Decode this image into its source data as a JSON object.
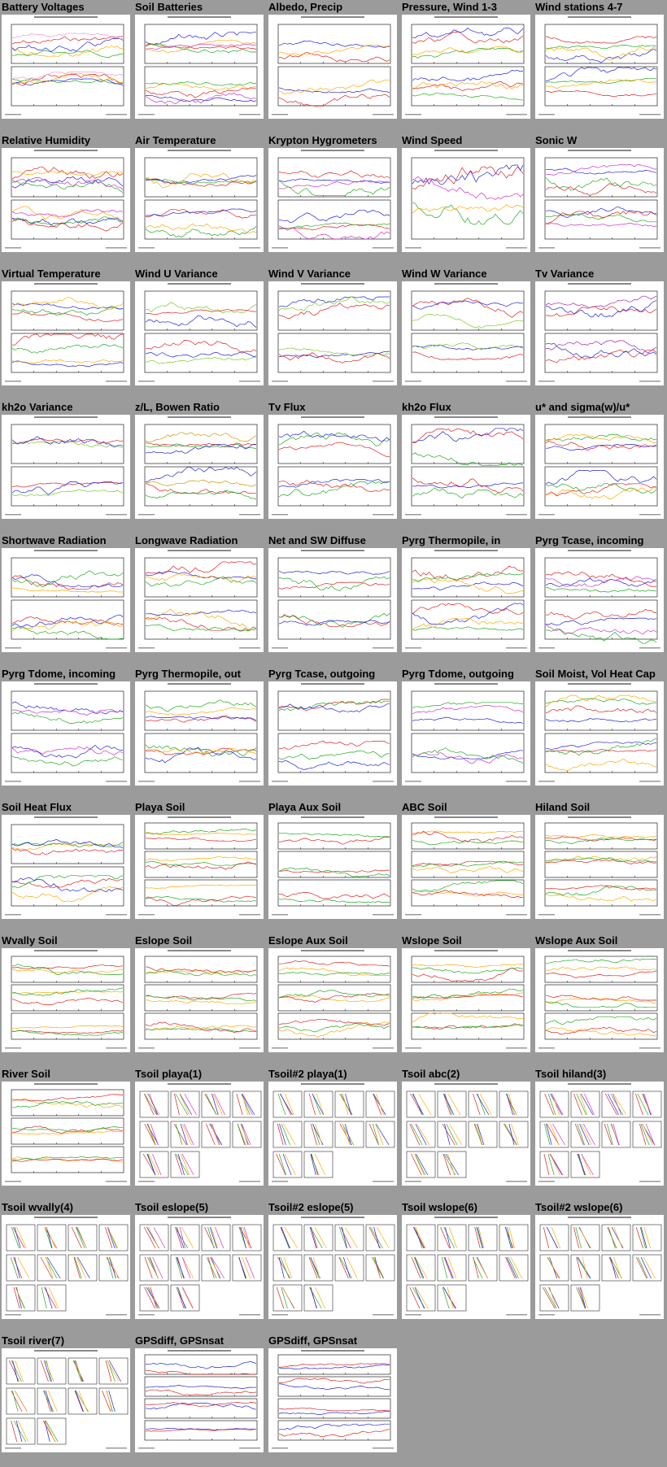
{
  "page_title": "",
  "panels": [
    {
      "title": "Battery Voltages",
      "kind": "line2",
      "series": [
        "#d22",
        "#2a2",
        "#22d",
        "#e9c",
        "#fa0"
      ]
    },
    {
      "title": "Soil Batteries",
      "kind": "line2",
      "series": [
        "#22d",
        "#d22",
        "#fa0",
        "#2a2",
        "#c3c"
      ]
    },
    {
      "title": "Albedo, Precip",
      "kind": "line2",
      "series": [
        "#d22",
        "#22d",
        "#fa0"
      ]
    },
    {
      "title": "Pressure, Wind 1-3",
      "kind": "line2",
      "series": [
        "#d22",
        "#22d",
        "#2a2",
        "#fa0"
      ]
    },
    {
      "title": "Wind stations 4-7",
      "kind": "line2",
      "series": [
        "#2a2",
        "#d22",
        "#22d",
        "#fa0"
      ]
    },
    {
      "title": "Relative Humidity",
      "kind": "line2",
      "series": [
        "#22d",
        "#2a2",
        "#d22",
        "#fa0",
        "#c3c"
      ]
    },
    {
      "title": "Air Temperature",
      "kind": "line2",
      "series": [
        "#d22",
        "#2a2",
        "#22d",
        "#fa0"
      ]
    },
    {
      "title": "Krypton Hygrometers",
      "kind": "line2",
      "series": [
        "#d22",
        "#2a2",
        "#22d",
        "#c3c"
      ]
    },
    {
      "title": "Wind Speed",
      "kind": "line1",
      "series": [
        "#d22",
        "#2a2",
        "#22d",
        "#fa0",
        "#c3c"
      ]
    },
    {
      "title": "Sonic W",
      "kind": "line2",
      "series": [
        "#22d",
        "#2a2",
        "#d22",
        "#c3c"
      ]
    },
    {
      "title": "Virtual Temperature",
      "kind": "line2",
      "series": [
        "#d22",
        "#2a2",
        "#22d",
        "#fa0"
      ]
    },
    {
      "title": "Wind U Variance",
      "kind": "line2",
      "series": [
        "#22d",
        "#7c2",
        "#d22"
      ]
    },
    {
      "title": "Wind V Variance",
      "kind": "line2",
      "series": [
        "#22d",
        "#7c2",
        "#d22"
      ]
    },
    {
      "title": "Wind W Variance",
      "kind": "line2",
      "series": [
        "#22d",
        "#7c2",
        "#d22"
      ]
    },
    {
      "title": "Tv Variance",
      "kind": "line2",
      "series": [
        "#a2a",
        "#d22",
        "#22d"
      ]
    },
    {
      "title": "kh2o Variance",
      "kind": "line2",
      "series": [
        "#d22",
        "#7c2",
        "#22d"
      ]
    },
    {
      "title": "z/L, Bowen Ratio",
      "kind": "line2",
      "series": [
        "#d22",
        "#2a2",
        "#c90",
        "#22d"
      ]
    },
    {
      "title": "Tv Flux",
      "kind": "line2",
      "series": [
        "#2a2",
        "#22d",
        "#d22"
      ]
    },
    {
      "title": "kh2o Flux",
      "kind": "line2",
      "series": [
        "#2a2",
        "#22d",
        "#d22"
      ]
    },
    {
      "title": "u* and sigma(w)/u*",
      "kind": "line2",
      "series": [
        "#2a2",
        "#22d",
        "#d22",
        "#fa0"
      ]
    },
    {
      "title": "Shortwave Radiation",
      "kind": "line2",
      "series": [
        "#d22",
        "#2a2",
        "#22d",
        "#fa0"
      ]
    },
    {
      "title": "Longwave Radiation",
      "kind": "line2",
      "series": [
        "#d22",
        "#2a2",
        "#22d",
        "#fa0"
      ]
    },
    {
      "title": "Net and SW Diffuse",
      "kind": "line2",
      "series": [
        "#d22",
        "#2a2",
        "#22d"
      ]
    },
    {
      "title": "Pyrg Thermopile, in",
      "kind": "line2",
      "series": [
        "#d22",
        "#2a2",
        "#22d",
        "#fa0"
      ]
    },
    {
      "title": "Pyrg Tcase, incoming",
      "kind": "line2",
      "series": [
        "#d22",
        "#2a2",
        "#22d",
        "#c3c"
      ]
    },
    {
      "title": "Pyrg Tdome, incoming",
      "kind": "line2",
      "series": [
        "#22d",
        "#c3c",
        "#2a2"
      ]
    },
    {
      "title": "Pyrg Thermopile, out",
      "kind": "line2",
      "series": [
        "#d22",
        "#2a2",
        "#22d",
        "#fa0"
      ]
    },
    {
      "title": "Pyrg Tcase, outgoing",
      "kind": "line2",
      "series": [
        "#d22",
        "#2a2",
        "#22d"
      ]
    },
    {
      "title": "Pyrg Tdome, outgoing",
      "kind": "line2",
      "series": [
        "#22d",
        "#c3c",
        "#2a2"
      ]
    },
    {
      "title": "Soil Moist, Vol Heat Cap",
      "kind": "line2",
      "series": [
        "#d22",
        "#22d",
        "#2a2",
        "#fa0"
      ]
    },
    {
      "title": "Soil Heat Flux",
      "kind": "line2",
      "series": [
        "#d22",
        "#fa0",
        "#2a2",
        "#22d"
      ]
    },
    {
      "title": "Playa Soil",
      "kind": "line3",
      "series": [
        "#2a2",
        "#d22",
        "#fa0"
      ]
    },
    {
      "title": "Playa Aux Soil",
      "kind": "line3",
      "series": [
        "#2a2",
        "#d22"
      ]
    },
    {
      "title": "ABC Soil",
      "kind": "line3",
      "series": [
        "#fa0",
        "#d22",
        "#2a2"
      ]
    },
    {
      "title": "Hiland Soil",
      "kind": "line3",
      "series": [
        "#fa0",
        "#d22",
        "#2a2"
      ]
    },
    {
      "title": "Wvally Soil",
      "kind": "line3",
      "series": [
        "#fa0",
        "#d22",
        "#2a2"
      ]
    },
    {
      "title": "Eslope Soil",
      "kind": "line3",
      "series": [
        "#fa0",
        "#d22",
        "#2a2"
      ]
    },
    {
      "title": "Eslope Aux Soil",
      "kind": "line3",
      "series": [
        "#fa0",
        "#d22",
        "#2a2"
      ]
    },
    {
      "title": "Wslope Soil",
      "kind": "line3",
      "series": [
        "#fa0",
        "#d22",
        "#2a2"
      ]
    },
    {
      "title": "Wslope Aux Soil",
      "kind": "line3",
      "series": [
        "#fa0",
        "#d22",
        "#2a2"
      ]
    },
    {
      "title": "River Soil",
      "kind": "line3",
      "series": [
        "#fa0",
        "#d22",
        "#2a2"
      ]
    },
    {
      "title": "Tsoil playa(1)",
      "kind": "profile",
      "series": [
        "#d22",
        "#2a2",
        "#22d",
        "#fa0",
        "#c3c"
      ]
    },
    {
      "title": "Tsoil#2 playa(1)",
      "kind": "profile",
      "series": [
        "#d22",
        "#2a2",
        "#22d",
        "#fa0"
      ]
    },
    {
      "title": "Tsoil abc(2)",
      "kind": "profile",
      "series": [
        "#d22",
        "#2a2",
        "#22d",
        "#fa0"
      ]
    },
    {
      "title": "Tsoil hiland(3)",
      "kind": "profile",
      "series": [
        "#d22",
        "#2a2",
        "#22d",
        "#fa0",
        "#c3c"
      ]
    },
    {
      "title": "Tsoil wvally(4)",
      "kind": "profile",
      "series": [
        "#d22",
        "#2a2",
        "#22d",
        "#fa0"
      ]
    },
    {
      "title": "Tsoil eslope(5)",
      "kind": "profile",
      "series": [
        "#d22",
        "#2a2",
        "#22d",
        "#fa0",
        "#c3c"
      ]
    },
    {
      "title": "Tsoil#2 eslope(5)",
      "kind": "profile",
      "series": [
        "#d22",
        "#2a2",
        "#22d",
        "#fa0"
      ]
    },
    {
      "title": "Tsoil wslope(6)",
      "kind": "profile",
      "series": [
        "#d22",
        "#2a2",
        "#22d",
        "#fa0"
      ]
    },
    {
      "title": "Tsoil#2 wslope(6)",
      "kind": "profile",
      "series": [
        "#d22",
        "#2a2",
        "#22d",
        "#fa0"
      ]
    },
    {
      "title": "Tsoil river(7)",
      "kind": "profile",
      "series": [
        "#d22",
        "#2a2",
        "#22d",
        "#fa0"
      ]
    },
    {
      "title": "GPSdiff, GPSnsat",
      "kind": "line4",
      "series": [
        "#22d",
        "#d22"
      ]
    },
    {
      "title": "GPSdiff, GPSnsat",
      "kind": "line4",
      "series": [
        "#22d",
        "#d22"
      ]
    }
  ]
}
